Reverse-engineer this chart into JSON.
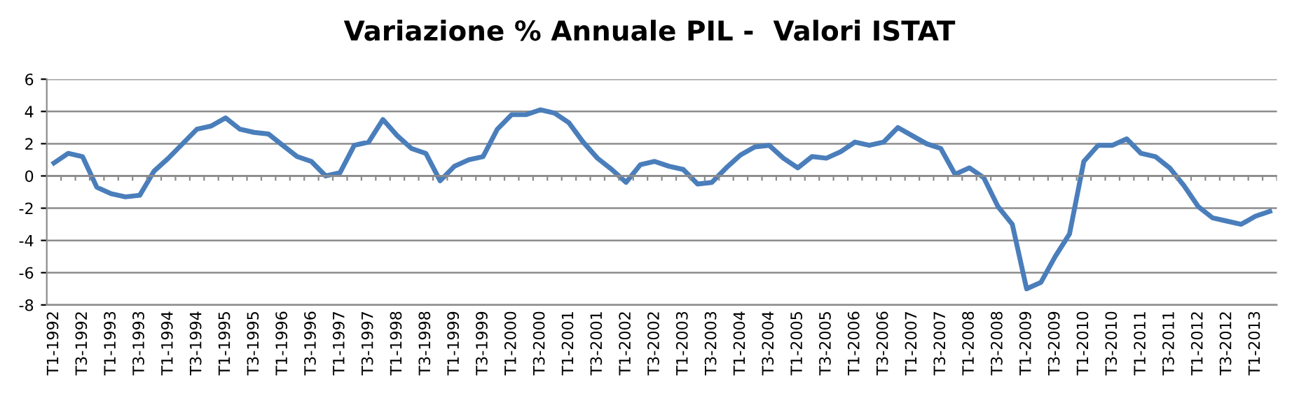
{
  "chart_data": {
    "type": "line",
    "title": "Variazione % Annuale PIL -  Valori ISTAT",
    "categories": [
      "T1-1992",
      null,
      "T3-1992",
      null,
      "T1-1993",
      null,
      "T3-1993",
      null,
      "T1-1994",
      null,
      "T3-1994",
      null,
      "T1-1995",
      null,
      "T3-1995",
      null,
      "T1-1996",
      null,
      "T3-1996",
      null,
      "T1-1997",
      null,
      "T3-1997",
      null,
      "T1-1998",
      null,
      "T3-1998",
      null,
      "T1-1999",
      null,
      "T3-1999",
      null,
      "T1-2000",
      null,
      "T3-2000",
      null,
      "T1-2001",
      null,
      "T3-2001",
      null,
      "T1-2002",
      null,
      "T3-2002",
      null,
      "T1-2003",
      null,
      "T3-2003",
      null,
      "T1-2004",
      null,
      "T3-2004",
      null,
      "T1-2005",
      null,
      "T3-2005",
      null,
      "T1-2006",
      null,
      "T3-2006",
      null,
      "T1-2007",
      null,
      "T3-2007",
      null,
      "T1-2008",
      null,
      "T3-2008",
      null,
      "T1-2009",
      null,
      "T3-2009",
      null,
      "T1-2010",
      null,
      "T3-2010",
      null,
      "T1-2011",
      null,
      "T3-2011",
      null,
      "T1-2012",
      null,
      "T3-2012",
      null,
      "T1-2013",
      null
    ],
    "series": [
      {
        "color": "#4a7ebb",
        "values": [
          0.8,
          1.4,
          1.2,
          -0.7,
          -1.1,
          -1.3,
          -1.2,
          0.3,
          1.1,
          2.0,
          2.9,
          3.1,
          3.6,
          2.9,
          2.7,
          2.6,
          1.9,
          1.2,
          0.9,
          0.0,
          0.2,
          1.9,
          2.1,
          3.5,
          2.5,
          1.7,
          1.4,
          -0.3,
          0.6,
          1.0,
          1.2,
          2.9,
          3.8,
          3.8,
          4.1,
          3.9,
          3.3,
          2.1,
          1.1,
          0.4,
          -0.4,
          0.7,
          0.9,
          0.6,
          0.4,
          -0.5,
          -0.4,
          0.5,
          1.3,
          1.8,
          1.9,
          1.1,
          0.5,
          1.2,
          1.1,
          1.5,
          2.1,
          1.9,
          2.1,
          3.0,
          2.5,
          2.0,
          1.7,
          0.1,
          0.5,
          -0.1,
          -1.9,
          -3.0,
          -7.0,
          -6.6,
          -5.0,
          -3.6,
          0.9,
          1.9,
          1.9,
          2.3,
          1.4,
          1.2,
          0.5,
          -0.6,
          -1.9,
          -2.6,
          -2.8,
          -3.0,
          -2.5,
          -2.2
        ]
      }
    ],
    "ylim": [
      -8,
      6
    ],
    "yticks": [
      -8,
      -6,
      -4,
      -2,
      0,
      2,
      4,
      6
    ],
    "grid": "y",
    "legend": false
  }
}
